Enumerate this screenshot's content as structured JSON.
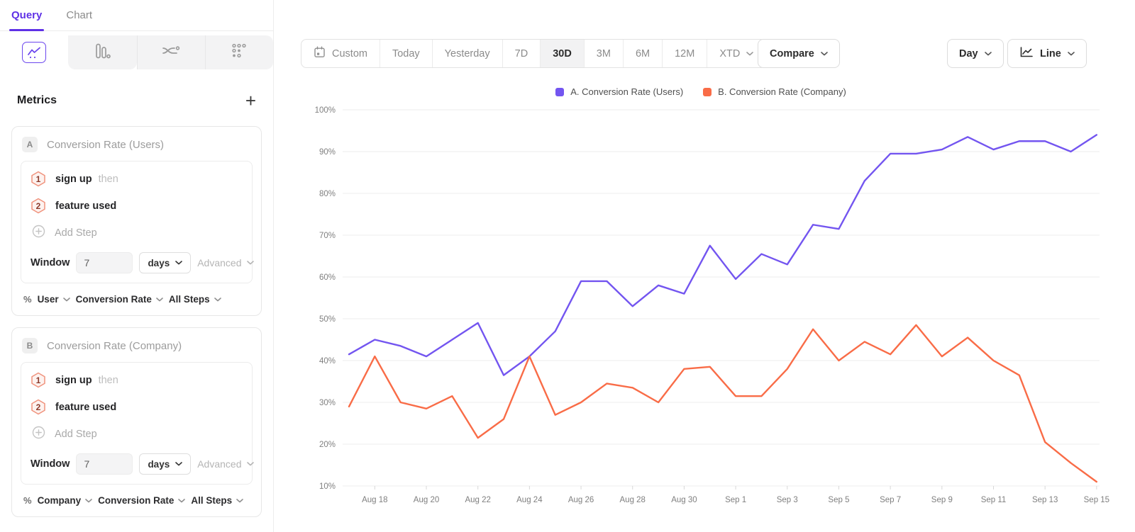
{
  "tabs": {
    "query": "Query",
    "chart": "Chart"
  },
  "viz_tabs": [
    {
      "icon": "line-chart-icon",
      "selected": true
    },
    {
      "icon": "bar-chart-icon",
      "selected": false
    },
    {
      "icon": "flow-chart-icon",
      "selected": false
    },
    {
      "icon": "scatter-chart-icon",
      "selected": false
    }
  ],
  "metrics": {
    "title": "Metrics",
    "add_label": "+",
    "cards": [
      {
        "badge": "A",
        "title": "Conversion Rate (Users)",
        "steps": [
          {
            "num": "1",
            "event": "sign up",
            "suffix": "then"
          },
          {
            "num": "2",
            "event": "feature used",
            "suffix": ""
          }
        ],
        "add_step": "Add Step",
        "window_label": "Window",
        "window_value": "7",
        "window_unit": "days",
        "advanced": "Advanced",
        "measure": {
          "pct": "%",
          "entity": "User",
          "metric": "Conversion Rate",
          "steps_label": "All Steps"
        }
      },
      {
        "badge": "B",
        "title": "Conversion Rate (Company)",
        "steps": [
          {
            "num": "1",
            "event": "sign up",
            "suffix": "then"
          },
          {
            "num": "2",
            "event": "feature used",
            "suffix": ""
          }
        ],
        "add_step": "Add Step",
        "window_label": "Window",
        "window_value": "7",
        "window_unit": "days",
        "advanced": "Advanced",
        "measure": {
          "pct": "%",
          "entity": "Company",
          "metric": "Conversion Rate",
          "steps_label": "All Steps"
        }
      }
    ]
  },
  "toolbar": {
    "ranges": [
      {
        "label": "Custom",
        "calendar_icon": true
      },
      {
        "label": "Today"
      },
      {
        "label": "Yesterday"
      },
      {
        "label": "7D"
      },
      {
        "label": "30D",
        "selected": true
      },
      {
        "label": "3M"
      },
      {
        "label": "6M"
      },
      {
        "label": "12M"
      },
      {
        "label": "XTD",
        "chevron": true
      }
    ],
    "compare_label": "Compare",
    "interval_label": "Day",
    "style_label": "Line"
  },
  "chart_data": {
    "type": "line",
    "title": "",
    "xlabel": "",
    "ylabel": "",
    "unit": "%",
    "grid": true,
    "legend_position": "top-center",
    "ylim": [
      10,
      100
    ],
    "yticks": [
      100,
      90,
      80,
      70,
      60,
      50,
      40,
      30,
      20,
      10
    ],
    "x": [
      "Aug 17",
      "Aug 18",
      "Aug 19",
      "Aug 20",
      "Aug 21",
      "Aug 22",
      "Aug 23",
      "Aug 24",
      "Aug 25",
      "Aug 26",
      "Aug 27",
      "Aug 28",
      "Aug 29",
      "Aug 30",
      "Aug 31",
      "Sep 1",
      "Sep 2",
      "Sep 3",
      "Sep 4",
      "Sep 5",
      "Sep 6",
      "Sep 7",
      "Sep 8",
      "Sep 9",
      "Sep 10",
      "Sep 11",
      "Sep 12",
      "Sep 13",
      "Sep 14",
      "Sep 15"
    ],
    "x_tick_labels": [
      "Aug 18",
      "Aug 20",
      "Aug 22",
      "Aug 24",
      "Aug 26",
      "Aug 28",
      "Aug 30",
      "Sep 1",
      "Sep 3",
      "Sep 5",
      "Sep 7",
      "Sep 9",
      "Sep 11",
      "Sep 13",
      "Sep 15"
    ],
    "series": [
      {
        "name": "A. Conversion Rate (Users)",
        "color": "#7355f0",
        "values": [
          41.5,
          45,
          43.5,
          41,
          45,
          49,
          36.5,
          41,
          47,
          59,
          59,
          53,
          58,
          56,
          67.5,
          59.5,
          65.5,
          63,
          72.5,
          71.5,
          83,
          89.5,
          89.5,
          90.5,
          93.5,
          90.5,
          92.5,
          92.5,
          90,
          94
        ]
      },
      {
        "name": "B. Conversion Rate (Company)",
        "color": "#f96c47",
        "values": [
          29,
          41,
          30,
          28.5,
          31.5,
          21.5,
          26,
          41,
          27,
          30,
          34.5,
          33.5,
          30,
          38,
          38.5,
          31.5,
          31.5,
          38,
          47.5,
          40,
          44.5,
          41.5,
          48.5,
          41,
          45.5,
          40,
          36.5,
          20.5,
          15.5,
          11
        ]
      }
    ]
  }
}
